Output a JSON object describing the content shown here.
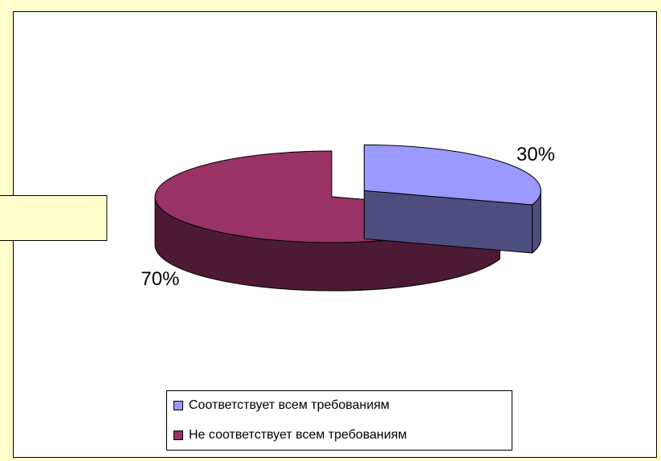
{
  "chart_data": {
    "type": "pie",
    "categories": [
      "Соответствует всем требованиям",
      "Не соответствует всем требованиям"
    ],
    "values": [
      30,
      70
    ],
    "value_labels": [
      "30%",
      "70%"
    ],
    "colors": [
      "#9999ff",
      "#993366"
    ],
    "legend": "bottom"
  }
}
